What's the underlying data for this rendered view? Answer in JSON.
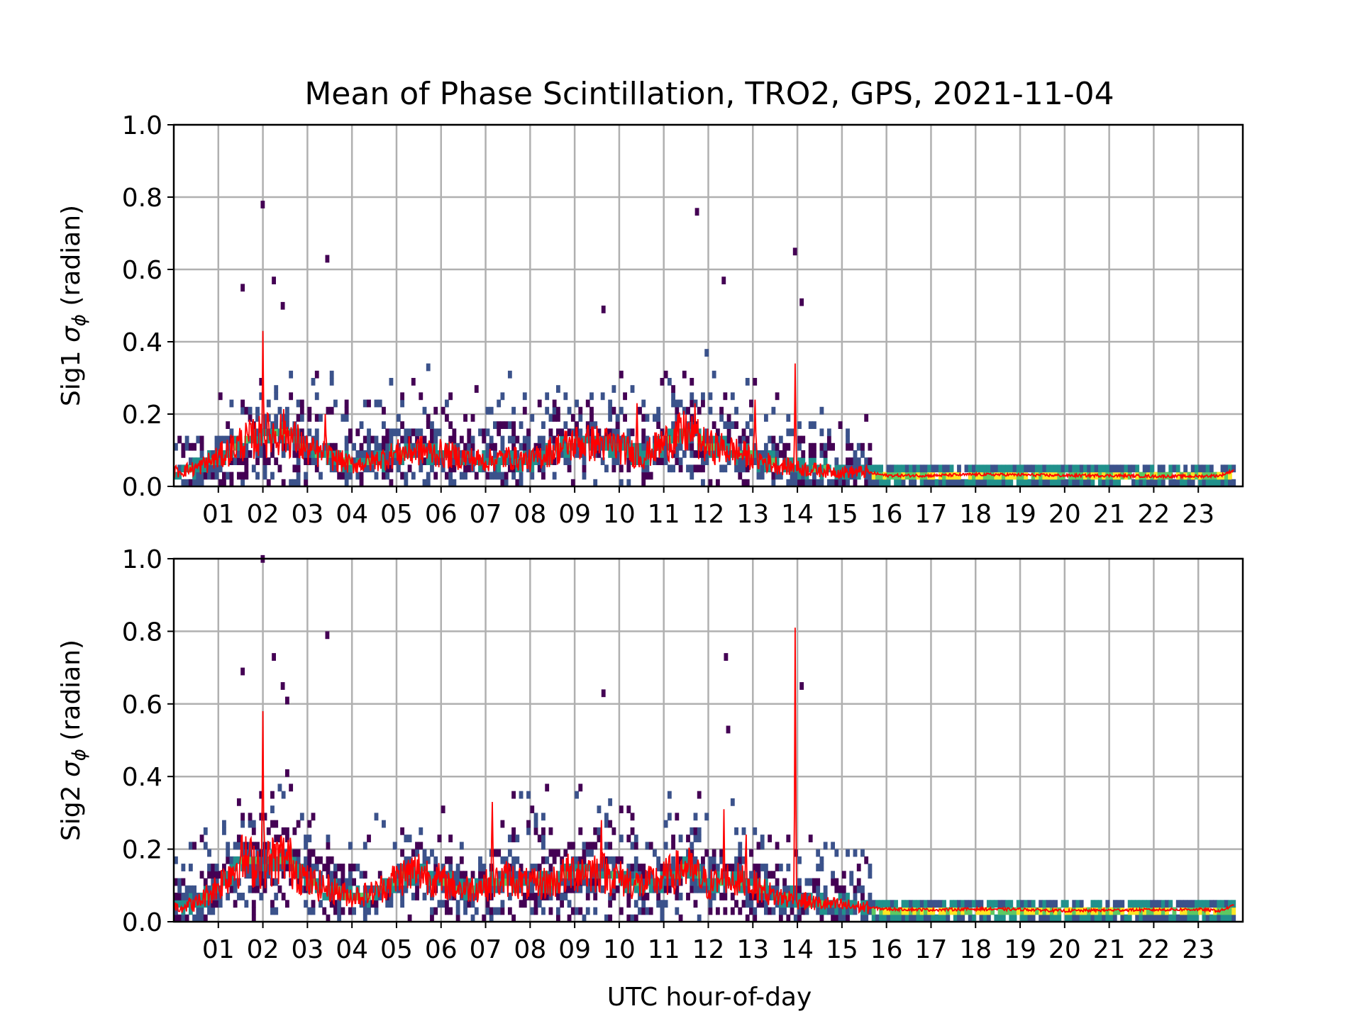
{
  "figure": {
    "title": "Mean of Phase Scintillation, TRO2, GPS, 2021-11-04",
    "xlabel": "UTC hour-of-day"
  },
  "chart_data": [
    {
      "type": "heatmap",
      "subtype": "2d-histogram-with-mean-line",
      "title": "Mean of Phase Scintillation, TRO2, GPS, 2021-11-04",
      "ylabel": "Sig1 σφ (radian)",
      "ylabel_prefix": "Sig1 ",
      "ylabel_symbol": "σ",
      "ylabel_subscript": "ϕ",
      "ylabel_suffix": " (radian)",
      "xlabel": "",
      "xlim": [
        0,
        24
      ],
      "ylim": [
        0,
        1.0
      ],
      "grid": true,
      "colormap": "viridis",
      "line_color": "#ff0000",
      "xticks": [
        "01",
        "02",
        "03",
        "04",
        "05",
        "06",
        "07",
        "08",
        "09",
        "10",
        "11",
        "12",
        "13",
        "14",
        "15",
        "16",
        "17",
        "18",
        "19",
        "20",
        "21",
        "22",
        "23"
      ],
      "yticks": [
        "0.0",
        "0.2",
        "0.4",
        "0.6",
        "0.8",
        "1.0"
      ],
      "mean_series": {
        "x": [
          0.0,
          0.5,
          1.0,
          1.5,
          2.0,
          2.5,
          3.0,
          3.5,
          4.0,
          4.5,
          5.0,
          5.5,
          6.0,
          6.5,
          7.0,
          7.5,
          8.0,
          8.5,
          9.0,
          9.5,
          10.0,
          10.5,
          11.0,
          11.5,
          12.0,
          12.5,
          13.0,
          13.5,
          14.0,
          14.5,
          15.0,
          15.5,
          16.0,
          17.0,
          18.0,
          19.0,
          20.0,
          21.0,
          22.0,
          23.0,
          23.5,
          23.8
        ],
        "y": [
          0.04,
          0.05,
          0.08,
          0.12,
          0.14,
          0.15,
          0.1,
          0.08,
          0.06,
          0.07,
          0.09,
          0.1,
          0.09,
          0.08,
          0.07,
          0.08,
          0.07,
          0.1,
          0.12,
          0.12,
          0.11,
          0.08,
          0.12,
          0.15,
          0.11,
          0.1,
          0.08,
          0.06,
          0.05,
          0.045,
          0.04,
          0.04,
          0.03,
          0.03,
          0.033,
          0.032,
          0.03,
          0.03,
          0.028,
          0.028,
          0.03,
          0.045
        ]
      },
      "spikes": [
        {
          "x": 2.0,
          "y": 0.43
        },
        {
          "x": 3.4,
          "y": 0.2
        },
        {
          "x": 10.4,
          "y": 0.23
        },
        {
          "x": 11.7,
          "y": 0.23
        },
        {
          "x": 13.05,
          "y": 0.24
        },
        {
          "x": 13.95,
          "y": 0.34
        }
      ],
      "dense_band": {
        "active_until_hour": 15.6,
        "active_y": [
          0.03,
          0.14
        ],
        "quiet_y": [
          0.015,
          0.05
        ]
      },
      "outliers": [
        {
          "x": 1.95,
          "y": 0.77
        },
        {
          "x": 3.4,
          "y": 0.62
        },
        {
          "x": 11.7,
          "y": 0.75
        },
        {
          "x": 12.3,
          "y": 0.56
        },
        {
          "x": 13.9,
          "y": 0.64
        },
        {
          "x": 14.05,
          "y": 0.5
        },
        {
          "x": 1.5,
          "y": 0.54
        },
        {
          "x": 2.2,
          "y": 0.56
        },
        {
          "x": 9.6,
          "y": 0.48
        },
        {
          "x": 2.4,
          "y": 0.49
        }
      ]
    },
    {
      "type": "heatmap",
      "subtype": "2d-histogram-with-mean-line",
      "ylabel": "Sig2 σφ (radian)",
      "ylabel_prefix": "Sig2 ",
      "ylabel_symbol": "σ",
      "ylabel_subscript": "ϕ",
      "ylabel_suffix": " (radian)",
      "xlabel": "UTC hour-of-day",
      "xlim": [
        0,
        24
      ],
      "ylim": [
        0,
        1.0
      ],
      "grid": true,
      "colormap": "viridis",
      "line_color": "#ff0000",
      "xticks": [
        "01",
        "02",
        "03",
        "04",
        "05",
        "06",
        "07",
        "08",
        "09",
        "10",
        "11",
        "12",
        "13",
        "14",
        "15",
        "16",
        "17",
        "18",
        "19",
        "20",
        "21",
        "22",
        "23"
      ],
      "yticks": [
        "0.0",
        "0.2",
        "0.4",
        "0.6",
        "0.8",
        "1.0"
      ],
      "mean_series": {
        "x": [
          0.0,
          0.5,
          1.0,
          1.5,
          2.0,
          2.5,
          3.0,
          3.5,
          4.0,
          4.5,
          5.0,
          5.5,
          6.0,
          6.5,
          7.0,
          7.5,
          8.0,
          8.5,
          9.0,
          9.5,
          10.0,
          10.5,
          11.0,
          11.5,
          12.0,
          12.5,
          13.0,
          13.5,
          14.0,
          14.5,
          15.0,
          15.5,
          16.0,
          17.0,
          18.0,
          19.0,
          20.0,
          21.0,
          22.0,
          23.0,
          23.5,
          23.8
        ],
        "y": [
          0.04,
          0.05,
          0.1,
          0.17,
          0.16,
          0.18,
          0.11,
          0.09,
          0.07,
          0.08,
          0.12,
          0.14,
          0.11,
          0.09,
          0.1,
          0.12,
          0.1,
          0.11,
          0.14,
          0.14,
          0.12,
          0.1,
          0.12,
          0.15,
          0.1,
          0.12,
          0.1,
          0.07,
          0.06,
          0.05,
          0.045,
          0.04,
          0.035,
          0.033,
          0.035,
          0.034,
          0.03,
          0.032,
          0.033,
          0.034,
          0.03,
          0.045
        ]
      },
      "spikes": [
        {
          "x": 2.0,
          "y": 0.58
        },
        {
          "x": 7.15,
          "y": 0.33
        },
        {
          "x": 9.6,
          "y": 0.28
        },
        {
          "x": 12.35,
          "y": 0.31
        },
        {
          "x": 12.85,
          "y": 0.24
        },
        {
          "x": 13.95,
          "y": 0.81
        }
      ],
      "dense_band": {
        "active_until_hour": 15.6,
        "active_y": [
          0.03,
          0.14
        ],
        "quiet_y": [
          0.015,
          0.055
        ]
      },
      "outliers": [
        {
          "x": 1.95,
          "y": 0.99
        },
        {
          "x": 3.4,
          "y": 0.78
        },
        {
          "x": 2.2,
          "y": 0.72
        },
        {
          "x": 12.35,
          "y": 0.72
        },
        {
          "x": 1.5,
          "y": 0.68
        },
        {
          "x": 2.4,
          "y": 0.64
        },
        {
          "x": 14.05,
          "y": 0.64
        },
        {
          "x": 9.6,
          "y": 0.62
        },
        {
          "x": 12.4,
          "y": 0.52
        },
        {
          "x": 2.5,
          "y": 0.6
        }
      ]
    }
  ]
}
